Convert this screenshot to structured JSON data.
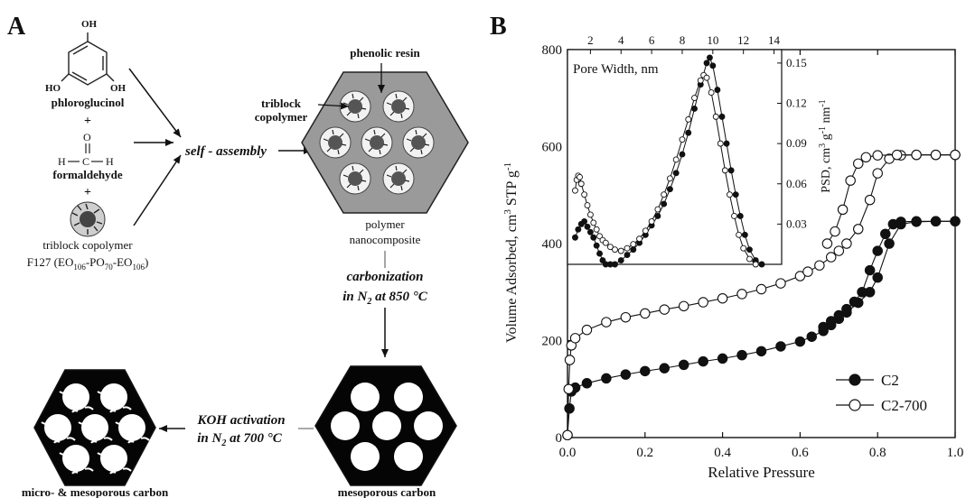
{
  "panel_a": {
    "letter": "A",
    "molecules": {
      "phloroglucinol": "phloroglucinol",
      "oh": "OH",
      "ho": "HO",
      "plus": "+",
      "formaldehyde": "formaldehyde",
      "o": "O",
      "h": "H",
      "c": "C",
      "copolymer_line1": "triblock copolymer",
      "copolymer_line2_a": "F127 (EO",
      "copolymer_line2_b": "-PO",
      "copolymer_line2_c": "-EO",
      "copolymer_line2_d": ")",
      "sub_106": "106",
      "sub_70": "70"
    },
    "self_assembly": "self - assembly",
    "labels": {
      "phenolic_resin": "phenolic resin",
      "triblock_line1": "triblock",
      "triblock_line2": "copolymer",
      "polymer_line1": "polymer",
      "polymer_line2": "nanocomposite"
    },
    "carbonization": {
      "line1": "carbonization",
      "line2_pre": "in N",
      "line2_sub": "2",
      "line2_post": " at 850 °C"
    },
    "koh": {
      "line1": "KOH activation",
      "line2_pre": "in N",
      "line2_sub": "2",
      "line2_post": "  at 700 °C"
    },
    "mesoporous_carbon": "mesoporous carbon",
    "micro_meso_carbon": "micro- & mesoporous carbon"
  },
  "panel_b": {
    "letter": "B"
  },
  "chart_data": [
    {
      "type": "scatter",
      "title": "",
      "xlabel": "Relative Pressure",
      "ylabel_parts": {
        "a": "Volume Adsorbed, cm",
        "sup1": "3",
        "b": " STP g",
        "sup2": "-1"
      },
      "xlim": [
        0,
        1.0
      ],
      "ylim": [
        0,
        800
      ],
      "x_ticks": [
        "0.0",
        "0.2",
        "0.4",
        "0.6",
        "0.8",
        "1.0"
      ],
      "y_ticks": [
        "0",
        "200",
        "400",
        "600",
        "800"
      ],
      "legend_position": "bottom-right",
      "series": [
        {
          "name": "C2",
          "marker": "filled-circle",
          "adsorption": {
            "x": [
              0.0,
              0.005,
              0.01,
              0.02,
              0.05,
              0.1,
              0.15,
              0.2,
              0.25,
              0.3,
              0.35,
              0.4,
              0.45,
              0.5,
              0.55,
              0.6,
              0.63,
              0.66,
              0.68,
              0.7,
              0.72,
              0.75,
              0.78,
              0.8,
              0.83,
              0.86,
              0.9,
              0.95,
              1.0
            ],
            "y": [
              5,
              60,
              95,
              103,
              112,
              122,
              130,
              137,
              143,
              150,
              157,
              163,
              170,
              178,
              188,
              198,
              208,
              220,
              232,
              245,
              258,
              278,
              300,
              330,
              400,
              440,
              445,
              446,
              446
            ]
          },
          "desorption": {
            "x": [
              1.0,
              0.95,
              0.9,
              0.86,
              0.84,
              0.82,
              0.8,
              0.78,
              0.76,
              0.74,
              0.72,
              0.7,
              0.68,
              0.66
            ],
            "y": [
              446,
              446,
              446,
              445,
              440,
              420,
              385,
              345,
              300,
              280,
              265,
              252,
              240,
              228
            ]
          }
        },
        {
          "name": "C2-700",
          "marker": "open-circle",
          "adsorption": {
            "x": [
              0.0,
              0.003,
              0.006,
              0.01,
              0.02,
              0.05,
              0.1,
              0.15,
              0.2,
              0.25,
              0.3,
              0.35,
              0.4,
              0.45,
              0.5,
              0.55,
              0.6,
              0.62,
              0.65,
              0.68,
              0.7,
              0.72,
              0.75,
              0.78,
              0.8,
              0.83,
              0.86,
              0.9,
              0.95,
              1.0
            ],
            "y": [
              5,
              100,
              160,
              190,
              205,
              222,
              238,
              248,
              256,
              264,
              271,
              279,
              287,
              296,
              306,
              318,
              333,
              342,
              355,
              372,
              385,
              400,
              430,
              490,
              545,
              575,
              582,
              583,
              583,
              583
            ]
          },
          "desorption": {
            "x": [
              1.0,
              0.95,
              0.9,
              0.85,
              0.8,
              0.77,
              0.75,
              0.73,
              0.71,
              0.69,
              0.67
            ],
            "y": [
              583,
              583,
              583,
              583,
              582,
              578,
              565,
              530,
              470,
              425,
              400
            ]
          }
        }
      ]
    },
    {
      "type": "line",
      "title": "Pore Width, nm",
      "xlabel": "",
      "ylabel_parts": {
        "a": "PSD, cm",
        "sup1": "3",
        "b": " g",
        "sup2": "-1",
        "c": " nm",
        "sup3": "-1"
      },
      "xlim": [
        0.5,
        14.5
      ],
      "ylim": [
        0,
        0.16
      ],
      "x_ticks": [
        "2",
        "4",
        "6",
        "8",
        "10",
        "12",
        "14"
      ],
      "y_ticks": [
        "0.03",
        "0.06",
        "0.09",
        "0.12",
        "0.15"
      ],
      "series": [
        {
          "name": "C2",
          "marker": "filled-circle",
          "x": [
            1.0,
            1.2,
            1.4,
            1.6,
            1.8,
            2.0,
            2.2,
            2.4,
            2.6,
            2.8,
            3.0,
            3.3,
            3.6,
            4.0,
            4.4,
            4.8,
            5.2,
            5.6,
            6.0,
            6.4,
            6.8,
            7.2,
            7.6,
            8.0,
            8.4,
            8.8,
            9.2,
            9.6,
            9.8,
            10.0,
            10.3,
            10.6,
            10.9,
            11.2,
            11.5,
            11.8,
            12.1,
            12.4,
            12.8,
            13.2
          ],
          "y": [
            0.02,
            0.026,
            0.03,
            0.032,
            0.028,
            0.024,
            0.02,
            0.014,
            0.008,
            0.003,
            0.0,
            0.0,
            0.0,
            0.003,
            0.007,
            0.011,
            0.016,
            0.022,
            0.029,
            0.036,
            0.045,
            0.056,
            0.068,
            0.082,
            0.098,
            0.116,
            0.134,
            0.15,
            0.154,
            0.148,
            0.13,
            0.11,
            0.09,
            0.07,
            0.052,
            0.036,
            0.022,
            0.011,
            0.003,
            0.0
          ]
        },
        {
          "name": "C2-700",
          "marker": "open-circle",
          "x": [
            1.0,
            1.1,
            1.2,
            1.3,
            1.4,
            1.6,
            1.8,
            2.0,
            2.2,
            2.4,
            2.6,
            2.8,
            3.0,
            3.3,
            3.6,
            4.0,
            4.4,
            4.8,
            5.2,
            5.6,
            6.0,
            6.4,
            6.8,
            7.2,
            7.6,
            8.0,
            8.4,
            8.8,
            9.2,
            9.4,
            9.6,
            9.9,
            10.2,
            10.5,
            10.8,
            11.1,
            11.4,
            11.7,
            12.0,
            12.4,
            12.8
          ],
          "y": [
            0.055,
            0.063,
            0.066,
            0.065,
            0.06,
            0.052,
            0.044,
            0.037,
            0.031,
            0.026,
            0.021,
            0.018,
            0.016,
            0.013,
            0.011,
            0.01,
            0.012,
            0.015,
            0.019,
            0.025,
            0.032,
            0.041,
            0.052,
            0.064,
            0.078,
            0.093,
            0.108,
            0.124,
            0.137,
            0.141,
            0.139,
            0.128,
            0.11,
            0.09,
            0.07,
            0.052,
            0.036,
            0.022,
            0.012,
            0.004,
            0.0
          ]
        }
      ]
    }
  ]
}
